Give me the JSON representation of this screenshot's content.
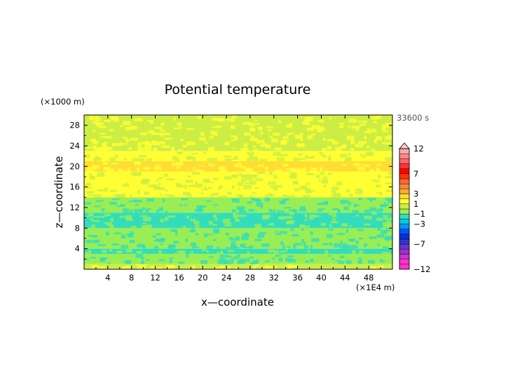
{
  "chart_data": {
    "type": "heatmap",
    "title": "Potential temperature",
    "xlabel": "x—coordinate",
    "ylabel": "z—coordinate",
    "x_unit": "(×1E4 m)",
    "y_unit": "(×1000 m)",
    "time_label": "33600 s",
    "xlim": [
      0,
      52
    ],
    "ylim": [
      0,
      30
    ],
    "x_ticks": [
      "4",
      "8",
      "12",
      "16",
      "20",
      "24",
      "28",
      "32",
      "36",
      "40",
      "44",
      "48"
    ],
    "y_ticks": [
      "4",
      "8",
      "12",
      "16",
      "20",
      "24",
      "28"
    ],
    "colorbar": {
      "levels": [
        -12,
        -11,
        -10,
        -9,
        -8,
        -7,
        -6,
        -5,
        -4,
        -3,
        -2,
        -1,
        0,
        1,
        2,
        3,
        4,
        5,
        6,
        7,
        8,
        9,
        10,
        11,
        12
      ],
      "labels": [
        "12",
        "7",
        "3",
        "1",
        "−1",
        "−3",
        "−7",
        "−12"
      ],
      "colors": {
        "-12": "#ff33cc",
        "-11": "#ff33cc",
        "-10": "#cc33cc",
        "-9": "#9933cc",
        "-8": "#6633cc",
        "-7": "#3333cc",
        "-6": "#0033dd",
        "-5": "#0055ff",
        "-4": "#0099ff",
        "-3": "#00ccdd",
        "-2": "#33ddbb",
        "-1": "#99ee55",
        "0": "#ccee44",
        "1": "#ffff33",
        "2": "#ffdd33",
        "3": "#ffaa33",
        "4": "#ff8833",
        "5": "#ff6633",
        "6": "#ff3300",
        "7": "#ff0000",
        "8": "#ff3333",
        "9": "#ff6666",
        "10": "#ff8888",
        "11": "#ffaaaa",
        "12": "#ffcccc"
      }
    },
    "bands": [
      {
        "z": [
          0,
          1
        ],
        "value": 0
      },
      {
        "z": [
          1,
          3
        ],
        "value": -1
      },
      {
        "z": [
          3,
          4
        ],
        "value": -2
      },
      {
        "z": [
          4,
          8
        ],
        "value": -1
      },
      {
        "z": [
          8,
          11
        ],
        "value": -2
      },
      {
        "z": [
          11,
          14
        ],
        "value": -1
      },
      {
        "z": [
          14,
          19
        ],
        "value": 1
      },
      {
        "z": [
          19,
          21
        ],
        "value": 2
      },
      {
        "z": [
          21,
          23
        ],
        "value": 1
      },
      {
        "z": [
          23,
          30
        ],
        "value": 0
      }
    ]
  }
}
